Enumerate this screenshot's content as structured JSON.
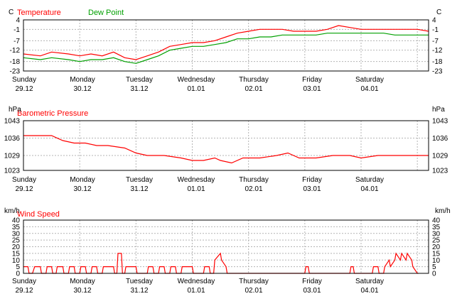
{
  "colors": {
    "temperature": "#ff0000",
    "dew_point": "#00a000",
    "pressure": "#ff0000",
    "wind": "#ff0000",
    "grid": "#b4b4b4",
    "frame": "#000000"
  },
  "chart_data": [
    {
      "type": "line",
      "title_series": [
        "Temperature",
        "Dew Point"
      ],
      "unit_left": "C",
      "unit_right": "C",
      "ylim": [
        -23,
        4
      ],
      "ytick_labels": [
        "4",
        "-1",
        "-7",
        "-12",
        "-18",
        "-23"
      ],
      "ytick_values": [
        4,
        -1,
        -7,
        -12,
        -18,
        -23
      ],
      "x_days": [
        "Sunday",
        "Monday",
        "Tuesday",
        "Wednesday",
        "Thursday",
        "Friday",
        "Saturday"
      ],
      "x_dates": [
        "29.12",
        "30.12",
        "31.12",
        "01.01",
        "02.01",
        "03.01",
        "04.01"
      ],
      "x_range_days": [
        0,
        7.2
      ],
      "series": [
        {
          "name": "Temperature",
          "x": [
            0,
            0.3,
            0.5,
            0.8,
            1.0,
            1.2,
            1.4,
            1.6,
            1.8,
            2.0,
            2.2,
            2.4,
            2.6,
            2.8,
            3.0,
            3.2,
            3.4,
            3.6,
            3.8,
            4.0,
            4.2,
            4.4,
            4.6,
            4.8,
            5.0,
            5.2,
            5.4,
            5.6,
            5.8,
            6.0,
            6.2,
            6.4,
            6.6,
            6.8,
            7.0,
            7.2
          ],
          "values": [
            -14,
            -15,
            -13,
            -14,
            -15,
            -14,
            -15,
            -13,
            -16,
            -17,
            -15,
            -13,
            -10,
            -9,
            -8,
            -8,
            -7,
            -5,
            -3,
            -2,
            -1,
            -1,
            -1,
            -2,
            -2,
            -2,
            -1,
            1,
            0,
            -1,
            -1,
            -1,
            -1,
            -1,
            -1,
            -2
          ]
        },
        {
          "name": "Dew Point",
          "x": [
            0,
            0.3,
            0.5,
            0.8,
            1.0,
            1.2,
            1.4,
            1.6,
            1.8,
            2.0,
            2.2,
            2.4,
            2.6,
            2.8,
            3.0,
            3.2,
            3.4,
            3.6,
            3.8,
            4.0,
            4.2,
            4.4,
            4.6,
            4.8,
            5.0,
            5.2,
            5.4,
            5.6,
            5.8,
            6.0,
            6.2,
            6.4,
            6.6,
            6.8,
            7.0,
            7.2
          ],
          "values": [
            -16,
            -17,
            -16,
            -17,
            -18,
            -17,
            -17,
            -16,
            -18,
            -19,
            -17,
            -15,
            -12,
            -11,
            -10,
            -10,
            -9,
            -8,
            -6,
            -6,
            -5,
            -5,
            -4,
            -4,
            -4,
            -4,
            -3,
            -3,
            -3,
            -3,
            -3,
            -3,
            -4,
            -4,
            -4,
            -4
          ]
        }
      ]
    },
    {
      "type": "line",
      "title_series": [
        "Barometric Pressure"
      ],
      "unit_left": "hPa",
      "unit_right": "hPa",
      "ylim": [
        1023,
        1043
      ],
      "ytick_labels": [
        "1043",
        "1036",
        "1029",
        "1023"
      ],
      "ytick_values": [
        1043,
        1036,
        1029,
        1023
      ],
      "x_days": [
        "Sunday",
        "Monday",
        "Tuesday",
        "Wednesday",
        "Thursday",
        "Friday",
        "Saturday"
      ],
      "x_dates": [
        "29.12",
        "30.12",
        "31.12",
        "01.01",
        "02.01",
        "03.01",
        "04.01"
      ],
      "x_range_days": [
        0,
        7.2
      ],
      "series": [
        {
          "name": "Barometric Pressure",
          "x": [
            0,
            0.2,
            0.5,
            0.7,
            0.9,
            1.1,
            1.3,
            1.5,
            1.8,
            2.0,
            2.2,
            2.5,
            2.8,
            3.0,
            3.2,
            3.4,
            3.5,
            3.7,
            3.9,
            4.2,
            4.5,
            4.7,
            4.9,
            5.2,
            5.5,
            5.8,
            6.0,
            6.3,
            6.6,
            6.9,
            7.2
          ],
          "values": [
            1037,
            1037,
            1037,
            1035,
            1034,
            1034,
            1033,
            1033,
            1032,
            1030,
            1029,
            1029,
            1028,
            1027,
            1027,
            1028,
            1027,
            1026,
            1028,
            1028,
            1029,
            1030,
            1028,
            1028,
            1029,
            1029,
            1028,
            1029,
            1029,
            1029,
            1029
          ]
        }
      ]
    },
    {
      "type": "line",
      "title_series": [
        "Wind Speed"
      ],
      "unit_left": "km/h",
      "unit_right": "km/h",
      "ylim": [
        0,
        40
      ],
      "ytick_labels": [
        "0",
        "5",
        "10",
        "15",
        "20",
        "25",
        "30",
        "35",
        "40"
      ],
      "ytick_values": [
        0,
        5,
        10,
        15,
        20,
        25,
        30,
        35,
        40
      ],
      "x_days": [
        "Sunday",
        "Monday",
        "Tuesday",
        "Wednesday",
        "Thursday",
        "Friday",
        "Saturday"
      ],
      "x_dates": [
        "29.12",
        "30.12",
        "31.12",
        "01.01",
        "02.01",
        "03.01",
        "04.01"
      ],
      "x_range_days": [
        0,
        7.2
      ],
      "series": [
        {
          "name": "Wind Speed",
          "x": [
            0,
            0.08,
            0.1,
            0.16,
            0.2,
            0.3,
            0.32,
            0.4,
            0.42,
            0.5,
            0.52,
            0.58,
            0.6,
            0.7,
            0.72,
            0.8,
            0.82,
            0.9,
            0.92,
            1.0,
            1.02,
            1.1,
            1.12,
            1.2,
            1.22,
            1.3,
            1.32,
            1.4,
            1.42,
            1.6,
            1.62,
            1.66,
            1.68,
            1.74,
            1.76,
            1.8,
            1.82,
            2.0,
            2.02,
            2.2,
            2.22,
            2.3,
            2.32,
            2.4,
            2.42,
            2.5,
            2.52,
            2.6,
            2.62,
            2.7,
            2.72,
            2.8,
            2.82,
            3.0,
            3.02,
            3.2,
            3.22,
            3.3,
            3.32,
            3.38,
            3.4,
            3.5,
            3.52,
            3.6,
            3.62,
            5.0,
            5.02,
            5.06,
            5.08,
            5.8,
            5.82,
            5.86,
            5.88,
            6.2,
            6.22,
            6.3,
            6.32,
            6.4,
            6.42,
            6.5,
            6.52,
            6.6,
            6.62,
            6.7,
            6.72,
            6.8,
            6.82,
            6.9,
            6.92,
            7.0,
            7.02
          ],
          "values": [
            5,
            5,
            0,
            0,
            5,
            5,
            0,
            0,
            5,
            5,
            0,
            0,
            5,
            5,
            0,
            0,
            5,
            5,
            0,
            0,
            5,
            5,
            0,
            0,
            5,
            5,
            0,
            0,
            5,
            5,
            0,
            0,
            15,
            15,
            0,
            0,
            5,
            5,
            0,
            0,
            5,
            5,
            0,
            0,
            5,
            5,
            0,
            0,
            5,
            5,
            0,
            0,
            5,
            5,
            0,
            0,
            5,
            5,
            0,
            0,
            10,
            15,
            10,
            5,
            0,
            0,
            5,
            5,
            0,
            0,
            5,
            5,
            0,
            0,
            5,
            5,
            0,
            0,
            5,
            10,
            5,
            10,
            15,
            10,
            15,
            10,
            15,
            10,
            5,
            0,
            0
          ]
        }
      ]
    }
  ]
}
